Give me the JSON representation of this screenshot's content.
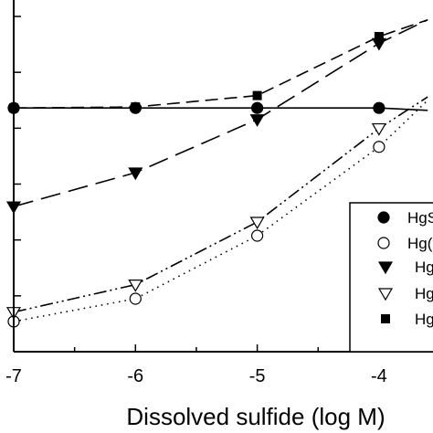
{
  "chart_data": {
    "type": "line",
    "xlabel": "Dissolved sulfide (log M)",
    "x_tick_labels": [
      "-7",
      "-6",
      "-5",
      "-4"
    ],
    "xlim": [
      -7,
      -3.6
    ],
    "ylim": [
      0,
      1
    ],
    "series": [
      {
        "name": "HgS",
        "marker": "filled-circle",
        "line": "solid",
        "x": [
          -7,
          -6,
          -5,
          -4,
          -3.6
        ],
        "y": [
          0.727,
          0.727,
          0.727,
          0.727,
          0.72
        ]
      },
      {
        "name": "Hg",
        "marker": "open-circle",
        "line": "dotted",
        "x": [
          -7,
          -6,
          -5,
          -4,
          -3.6
        ],
        "y": [
          0.09,
          0.158,
          0.346,
          0.611,
          0.75
        ]
      },
      {
        "name": "Hg",
        "marker": "filled-triangle-down",
        "line": "long-dash",
        "x": [
          -7,
          -6,
          -5,
          -4,
          -3.6
        ],
        "y": [
          0.433,
          0.534,
          0.693,
          0.92,
          0.99
        ]
      },
      {
        "name": "Hg",
        "marker": "open-triangle-down",
        "line": "dash-dot-dot",
        "x": [
          -7,
          -6,
          -5,
          -4,
          -3.6
        ],
        "y": [
          0.118,
          0.2,
          0.387,
          0.666,
          0.76
        ]
      },
      {
        "name": "Hg",
        "marker": "filled-square",
        "line": "dash",
        "x": [
          -7,
          -6,
          -5,
          -4,
          -3.6
        ],
        "y": [
          0.727,
          0.73,
          0.764,
          0.94,
          0.99
        ]
      }
    ],
    "legend": {
      "placement": "right",
      "labels": [
        "HgS",
        "Hg(",
        "Hg",
        "Hg",
        "Hg"
      ]
    },
    "grid": false
  }
}
